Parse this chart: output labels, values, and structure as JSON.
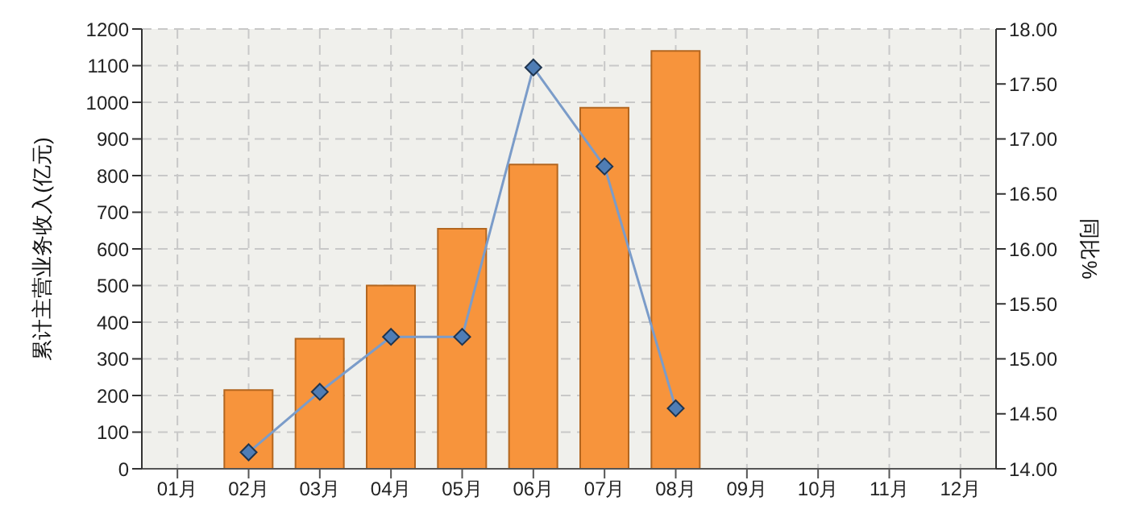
{
  "chart_data": {
    "type": "bar",
    "ylabel": "累计主营业务收入(亿元)",
    "y2label": "同比%",
    "categories": [
      "01月",
      "02月",
      "03月",
      "04月",
      "05月",
      "06月",
      "07月",
      "08月",
      "09月",
      "10月",
      "11月",
      "12月"
    ],
    "series": [
      {
        "color": "#f7943c",
        "values": [
          null,
          215,
          355,
          500,
          655,
          830,
          985,
          1140,
          null,
          null,
          null,
          null
        ]
      },
      {
        "type": "line",
        "axis": "y2",
        "color": "#7b9cc9",
        "marker": "diamond",
        "values": [
          null,
          14.15,
          14.7,
          15.2,
          15.2,
          17.65,
          16.75,
          14.55,
          null,
          null,
          null,
          null
        ]
      }
    ],
    "ylim": [
      0,
      1200
    ],
    "yticks": [
      0,
      100,
      200,
      300,
      400,
      500,
      600,
      700,
      800,
      900,
      1000,
      1100,
      1200
    ],
    "y2lim": [
      14,
      18
    ],
    "y2ticks": [
      {
        "value": 14,
        "label": "14.00"
      },
      {
        "value": 14.5,
        "label": "14.50"
      },
      {
        "value": 15,
        "label": "15.00"
      },
      {
        "value": 15.5,
        "label": "15.50"
      },
      {
        "value": 16,
        "label": "16.00"
      },
      {
        "value": 16.5,
        "label": "16.50"
      },
      {
        "value": 17,
        "label": "17.00"
      },
      {
        "value": 17.5,
        "label": "17.50"
      },
      {
        "value": 18,
        "label": "18.00"
      }
    ],
    "grid": true,
    "legend": false
  }
}
